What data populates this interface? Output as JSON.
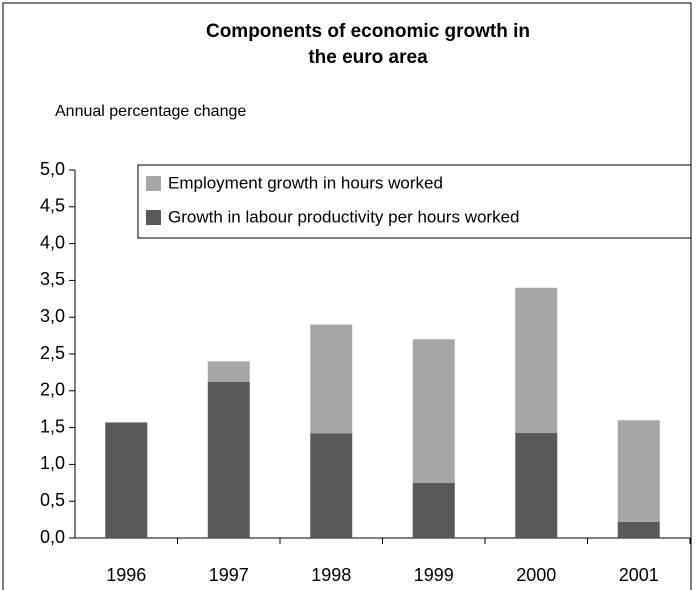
{
  "chart_data": {
    "type": "stacked_bar",
    "title": [
      "Components of economic growth in",
      "the euro area"
    ],
    "subtitle": "Annual percentage change",
    "categories": [
      "1996",
      "1997",
      "1998",
      "1999",
      "2000",
      "2001"
    ],
    "series": [
      {
        "name": "Growth in labour productivity per hours worked",
        "color": "#595959",
        "values": [
          1.57,
          2.12,
          1.42,
          0.75,
          1.43,
          0.22
        ]
      },
      {
        "name": "Employment growth in hours worked",
        "color": "#a6a6a6",
        "values": [
          0,
          0.28,
          1.48,
          1.95,
          1.97,
          1.38
        ]
      }
    ],
    "ylim": [
      0,
      5
    ],
    "yticks": [
      {
        "value": 0,
        "label": "0,0"
      },
      {
        "value": 0.5,
        "label": "0,5"
      },
      {
        "value": 1,
        "label": "1,0"
      },
      {
        "value": 1.5,
        "label": "1,5"
      },
      {
        "value": 2,
        "label": "2,0"
      },
      {
        "value": 2.5,
        "label": "2,5"
      },
      {
        "value": 3,
        "label": "3,0"
      },
      {
        "value": 3.5,
        "label": "3,5"
      },
      {
        "value": 4,
        "label": "4,0"
      },
      {
        "value": 4.5,
        "label": "4,5"
      },
      {
        "value": 5,
        "label": "5,0"
      }
    ],
    "legend_position": "top-right"
  }
}
